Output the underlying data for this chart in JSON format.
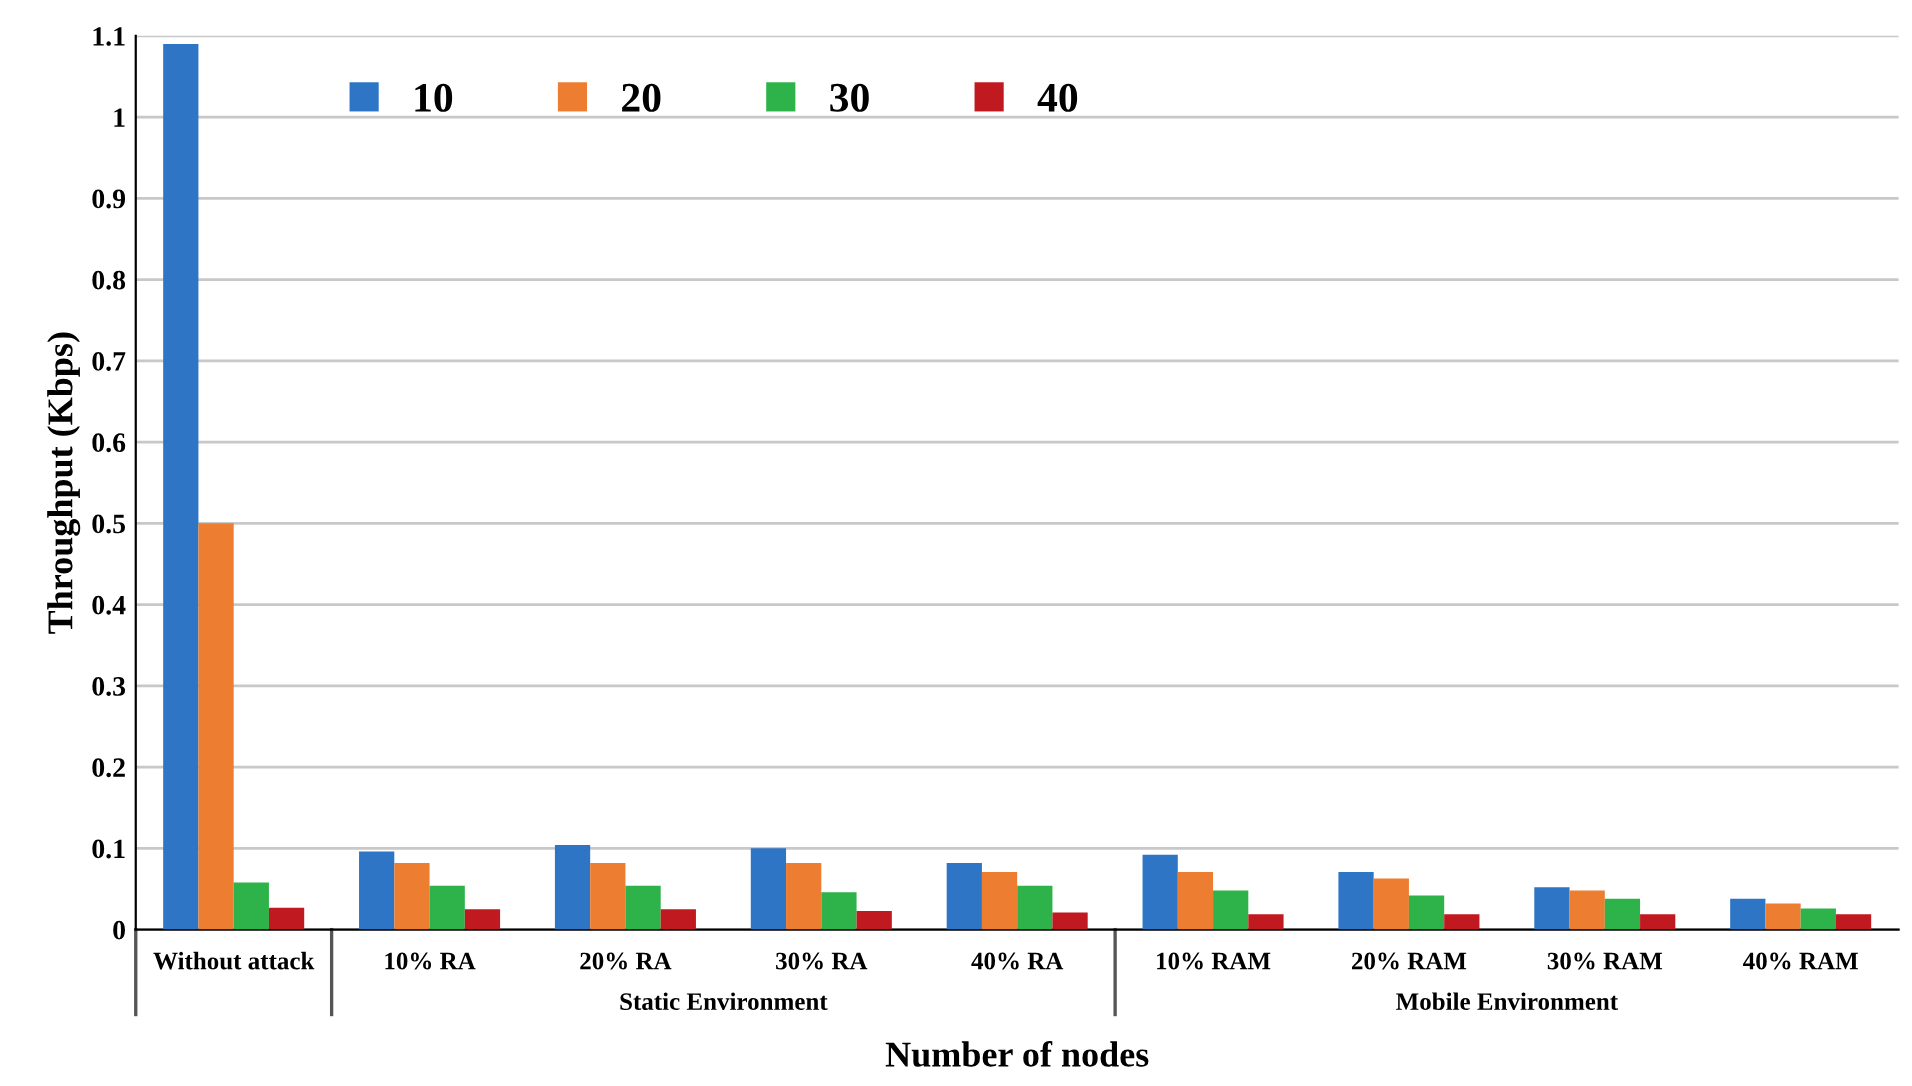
{
  "chart_data": {
    "type": "bar",
    "xlabel": "Number of nodes",
    "ylabel": "Throughput (Kbps)",
    "categories": [
      "Without attack",
      "10% RA",
      "20% RA",
      "30% RA",
      "40% RA",
      "10% RAM",
      "20% RAM",
      "30% RAM",
      "40% RAM"
    ],
    "series": [
      {
        "name": "10",
        "color": "#2e75c6",
        "values": [
          1.09,
          0.096,
          0.104,
          0.1,
          0.082,
          0.092,
          0.071,
          0.052,
          0.038
        ]
      },
      {
        "name": "20",
        "color": "#ed7d31",
        "values": [
          0.5,
          0.082,
          0.082,
          0.082,
          0.071,
          0.071,
          0.063,
          0.048,
          0.032
        ]
      },
      {
        "name": "30",
        "color": "#2db34a",
        "values": [
          0.058,
          0.054,
          0.054,
          0.046,
          0.054,
          0.048,
          0.042,
          0.038,
          0.026
        ]
      },
      {
        "name": "40",
        "color": "#c0191f",
        "values": [
          0.027,
          0.025,
          0.025,
          0.023,
          0.021,
          0.019,
          0.019,
          0.019,
          0.019
        ]
      }
    ],
    "ylim": [
      0,
      1.1
    ],
    "yticks": [
      0,
      0.1,
      0.2,
      0.3,
      0.4,
      0.5,
      0.6,
      0.7,
      0.8,
      0.9,
      1,
      1.1
    ],
    "grid": "y",
    "legend": "top left",
    "annotations": [
      "Static Environment",
      "Mobile Environment"
    ]
  }
}
